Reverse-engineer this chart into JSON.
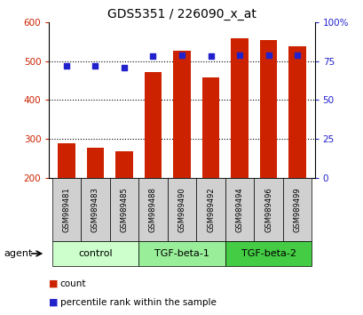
{
  "title": "GDS5351 / 226090_x_at",
  "samples": [
    "GSM989481",
    "GSM989483",
    "GSM989485",
    "GSM989488",
    "GSM989490",
    "GSM989492",
    "GSM989494",
    "GSM989496",
    "GSM989499"
  ],
  "counts": [
    290,
    277,
    268,
    472,
    527,
    458,
    558,
    554,
    538
  ],
  "percentile_ranks": [
    72,
    72,
    71,
    78,
    79,
    78,
    79,
    79,
    79
  ],
  "groups": [
    {
      "label": "control",
      "start": 0,
      "end": 3,
      "color": "#ccffcc"
    },
    {
      "label": "TGF-beta-1",
      "start": 3,
      "end": 6,
      "color": "#99ee99"
    },
    {
      "label": "TGF-beta-2",
      "start": 6,
      "end": 9,
      "color": "#44cc44"
    }
  ],
  "ylim_left": [
    200,
    600
  ],
  "ylim_right": [
    0,
    100
  ],
  "yticks_left": [
    200,
    300,
    400,
    500,
    600
  ],
  "yticks_right": [
    0,
    25,
    50,
    75,
    100
  ],
  "ytick_labels_right": [
    "0",
    "25",
    "50",
    "75",
    "100%"
  ],
  "bar_color": "#cc2200",
  "dot_color": "#2222cc",
  "agent_label": "agent",
  "legend_count": "count",
  "legend_pct": "percentile rank within the sample",
  "background_color": "#ffffff",
  "bar_width": 0.6,
  "base_value": 200,
  "grid_yticks": [
    300,
    400,
    500
  ]
}
